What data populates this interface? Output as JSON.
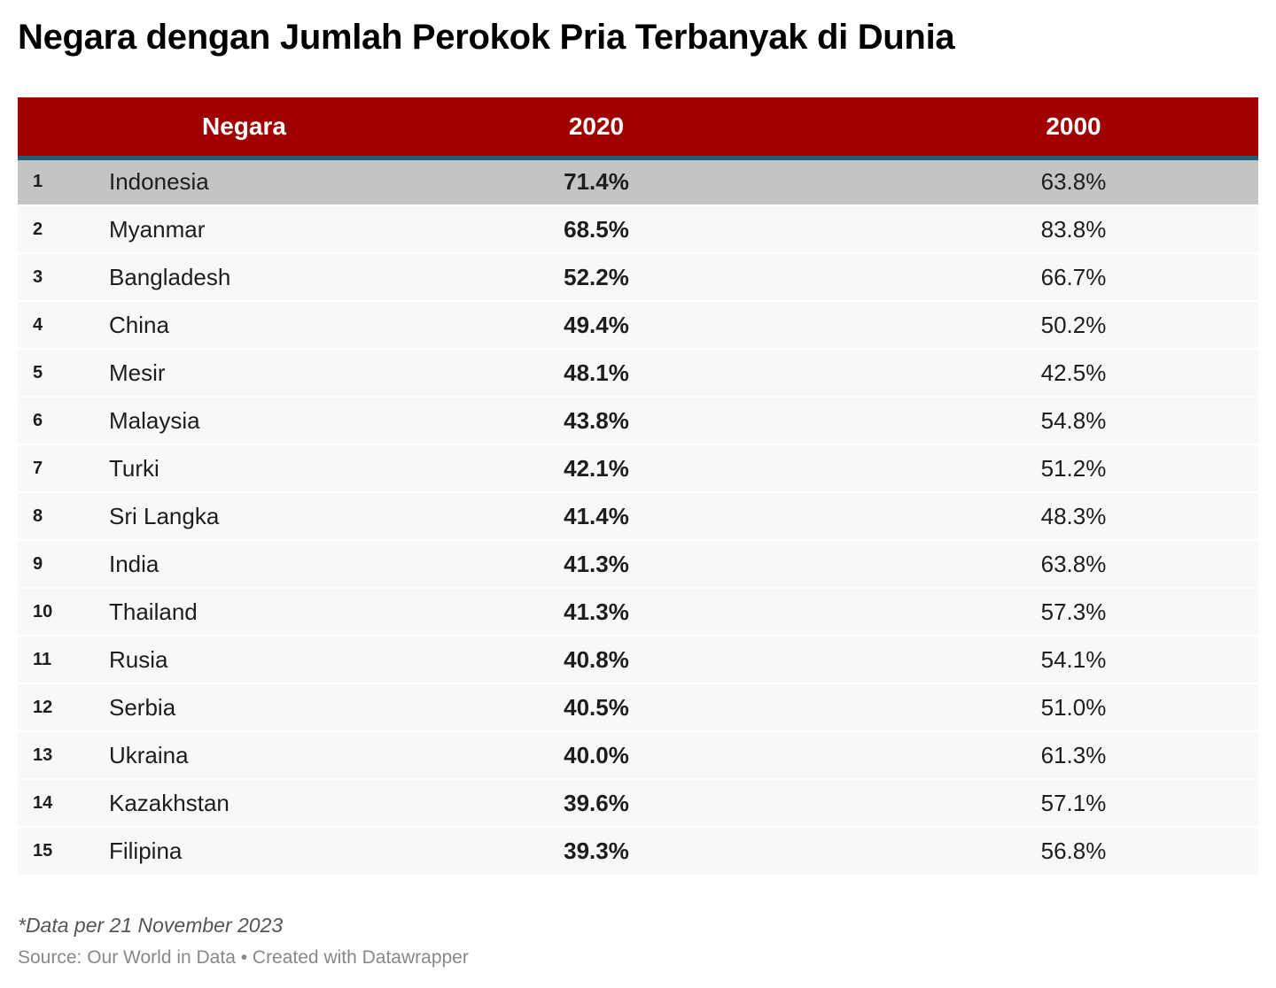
{
  "title": "Negara dengan Jumlah Perokok Pria Terbanyak di Dunia",
  "columns": {
    "rank": "",
    "name": "Negara",
    "v2020": "2020",
    "v2000": "2000"
  },
  "rows": [
    {
      "rank": "1",
      "name": "Indonesia",
      "v2020": "71.4%",
      "v2000": "63.8%",
      "highlight": true
    },
    {
      "rank": "2",
      "name": "Myanmar",
      "v2020": "68.5%",
      "v2000": "83.8%"
    },
    {
      "rank": "3",
      "name": "Bangladesh",
      "v2020": "52.2%",
      "v2000": "66.7%"
    },
    {
      "rank": "4",
      "name": "China",
      "v2020": "49.4%",
      "v2000": "50.2%"
    },
    {
      "rank": "5",
      "name": "Mesir",
      "v2020": "48.1%",
      "v2000": "42.5%"
    },
    {
      "rank": "6",
      "name": "Malaysia",
      "v2020": "43.8%",
      "v2000": "54.8%"
    },
    {
      "rank": "7",
      "name": "Turki",
      "v2020": "42.1%",
      "v2000": "51.2%"
    },
    {
      "rank": "8",
      "name": "Sri Langka",
      "v2020": "41.4%",
      "v2000": "48.3%"
    },
    {
      "rank": "9",
      "name": "India",
      "v2020": "41.3%",
      "v2000": "63.8%"
    },
    {
      "rank": "10",
      "name": "Thailand",
      "v2020": "41.3%",
      "v2000": "57.3%"
    },
    {
      "rank": "11",
      "name": "Rusia",
      "v2020": "40.8%",
      "v2000": "54.1%"
    },
    {
      "rank": "12",
      "name": "Serbia",
      "v2020": "40.5%",
      "v2000": "51.0%"
    },
    {
      "rank": "13",
      "name": "Ukraina",
      "v2020": "40.0%",
      "v2000": "61.3%"
    },
    {
      "rank": "14",
      "name": "Kazakhstan",
      "v2020": "39.6%",
      "v2000": "57.1%"
    },
    {
      "rank": "15",
      "name": "Filipina",
      "v2020": "39.3%",
      "v2000": "56.8%"
    }
  ],
  "notes": "*Data per 21 November 2023",
  "source": "Source: Our World in Data • Created with Datawrapper",
  "colors": {
    "header": "#a00000",
    "header_border": "#1c5f7a",
    "highlight": "#c4c4c4"
  }
}
